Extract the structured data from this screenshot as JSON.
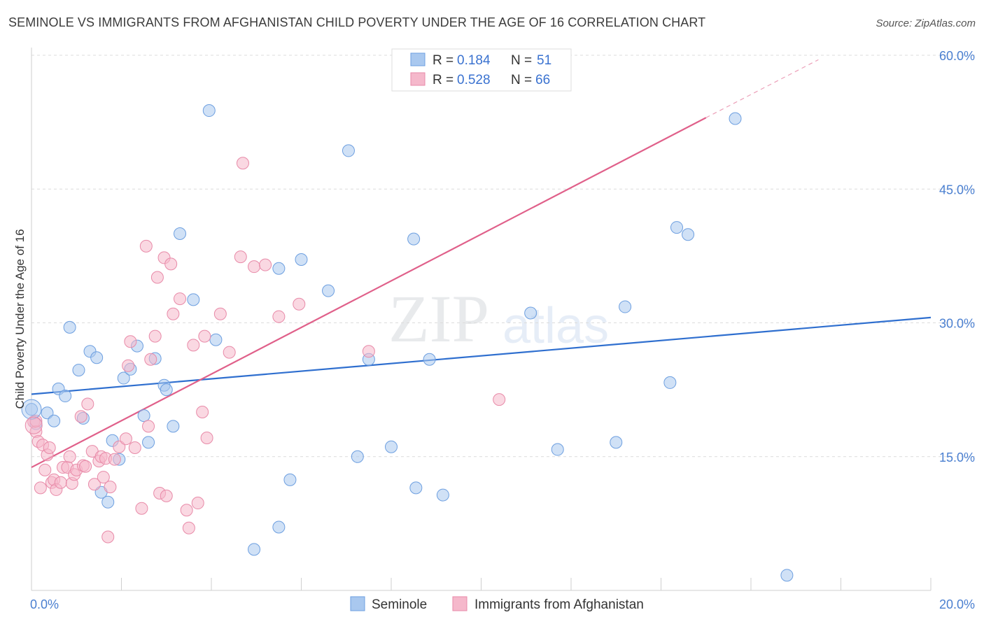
{
  "title": "SEMINOLE VS IMMIGRANTS FROM AFGHANISTAN CHILD POVERTY UNDER THE AGE OF 16 CORRELATION CHART",
  "source": "Source: ZipAtlas.com",
  "watermark": {
    "zip": "ZIP",
    "atlas": "atlas"
  },
  "legend": {
    "r_label": "R =",
    "n_label": "N =",
    "rows": [
      {
        "r": "0.184",
        "n": "51"
      },
      {
        "r": "0.528",
        "n": "66"
      }
    ]
  },
  "chart_data": {
    "type": "scatter",
    "title": "SEMINOLE VS IMMIGRANTS FROM AFGHANISTAN CHILD POVERTY UNDER THE AGE OF 16 CORRELATION CHART",
    "xlabel": "",
    "ylabel": "Child Poverty Under the Age of 16",
    "xlim": [
      0,
      20
    ],
    "ylim": [
      0,
      60
    ],
    "x_tick_labels": [
      "0.0%",
      "20.0%"
    ],
    "y_ticks": [
      {
        "value": 15,
        "label": "15.0%"
      },
      {
        "value": 30,
        "label": "30.0%"
      },
      {
        "value": 45,
        "label": "45.0%"
      },
      {
        "value": 60,
        "label": "60.0%"
      }
    ],
    "series": [
      {
        "name": "Seminole",
        "color": "#a9c8ef",
        "stroke": "#6d9fe0",
        "trend_color": "#2f6fcf",
        "trend": {
          "x0": 0,
          "y0": 22.0,
          "x1": 20,
          "y1": 30.6
        },
        "points": [
          [
            0.0,
            20.3
          ],
          [
            0.1,
            18.7
          ],
          [
            0.35,
            19.9
          ],
          [
            0.5,
            19.0
          ],
          [
            0.6,
            22.6
          ],
          [
            0.75,
            21.8
          ],
          [
            0.85,
            29.5
          ],
          [
            1.05,
            24.7
          ],
          [
            1.3,
            26.8
          ],
          [
            1.45,
            26.1
          ],
          [
            1.15,
            19.3
          ],
          [
            1.55,
            11.0
          ],
          [
            1.7,
            9.9
          ],
          [
            1.8,
            16.8
          ],
          [
            1.95,
            14.7
          ],
          [
            2.05,
            23.8
          ],
          [
            2.2,
            24.8
          ],
          [
            2.35,
            27.4
          ],
          [
            2.5,
            19.6
          ],
          [
            2.6,
            16.6
          ],
          [
            2.75,
            26.0
          ],
          [
            2.95,
            23.0
          ],
          [
            3.0,
            22.5
          ],
          [
            3.15,
            18.4
          ],
          [
            3.3,
            40.0
          ],
          [
            3.6,
            32.6
          ],
          [
            3.95,
            53.8
          ],
          [
            4.1,
            28.1
          ],
          [
            4.95,
            4.6
          ],
          [
            5.5,
            7.1
          ],
          [
            5.5,
            36.1
          ],
          [
            5.75,
            12.4
          ],
          [
            6.0,
            37.1
          ],
          [
            6.6,
            33.6
          ],
          [
            7.05,
            49.3
          ],
          [
            7.25,
            15.0
          ],
          [
            7.5,
            25.9
          ],
          [
            8.0,
            16.1
          ],
          [
            8.5,
            39.4
          ],
          [
            8.55,
            11.5
          ],
          [
            8.85,
            25.9
          ],
          [
            9.15,
            10.7
          ],
          [
            11.1,
            31.1
          ],
          [
            11.7,
            15.8
          ],
          [
            13.0,
            16.6
          ],
          [
            13.2,
            31.8
          ],
          [
            14.2,
            23.3
          ],
          [
            14.35,
            40.7
          ],
          [
            14.6,
            39.9
          ],
          [
            15.65,
            52.9
          ],
          [
            16.8,
            1.7
          ]
        ]
      },
      {
        "name": "Immigrants from Afghanistan",
        "color": "#f5b8cb",
        "stroke": "#e88aa8",
        "trend_color": "#e0608a",
        "trend": {
          "x0": 0,
          "y0": 13.8,
          "x1": 15,
          "y1": 53.0
        },
        "trend_extension": {
          "x0": 15,
          "y0": 53.0,
          "x1": 17.5,
          "y1": 59.5
        },
        "points": [
          [
            0.05,
            18.9
          ],
          [
            0.1,
            17.8
          ],
          [
            0.15,
            16.7
          ],
          [
            0.2,
            11.5
          ],
          [
            0.25,
            16.3
          ],
          [
            0.3,
            13.5
          ],
          [
            0.35,
            15.2
          ],
          [
            0.4,
            16.0
          ],
          [
            0.45,
            12.1
          ],
          [
            0.5,
            12.4
          ],
          [
            0.55,
            11.3
          ],
          [
            0.65,
            12.1
          ],
          [
            0.7,
            13.8
          ],
          [
            0.8,
            13.8
          ],
          [
            0.85,
            15.0
          ],
          [
            0.9,
            12.0
          ],
          [
            0.95,
            13.0
          ],
          [
            1.0,
            13.5
          ],
          [
            1.1,
            19.5
          ],
          [
            1.15,
            14.0
          ],
          [
            1.2,
            13.9
          ],
          [
            1.25,
            20.9
          ],
          [
            1.35,
            15.6
          ],
          [
            1.4,
            11.9
          ],
          [
            1.5,
            14.5
          ],
          [
            1.55,
            15.0
          ],
          [
            1.6,
            12.7
          ],
          [
            1.65,
            14.8
          ],
          [
            1.7,
            6.0
          ],
          [
            1.75,
            11.6
          ],
          [
            1.85,
            14.7
          ],
          [
            1.95,
            16.1
          ],
          [
            2.1,
            17.0
          ],
          [
            2.15,
            25.2
          ],
          [
            2.2,
            27.9
          ],
          [
            2.3,
            16.0
          ],
          [
            2.45,
            9.2
          ],
          [
            2.55,
            38.6
          ],
          [
            2.6,
            18.4
          ],
          [
            2.65,
            25.9
          ],
          [
            2.75,
            28.5
          ],
          [
            2.8,
            35.1
          ],
          [
            2.85,
            10.9
          ],
          [
            2.95,
            37.3
          ],
          [
            3.0,
            10.6
          ],
          [
            3.1,
            36.6
          ],
          [
            3.15,
            31.0
          ],
          [
            3.3,
            32.7
          ],
          [
            3.45,
            9.0
          ],
          [
            3.5,
            7.0
          ],
          [
            3.6,
            27.5
          ],
          [
            3.7,
            9.8
          ],
          [
            3.8,
            20.0
          ],
          [
            3.85,
            28.5
          ],
          [
            3.9,
            17.1
          ],
          [
            4.2,
            31.0
          ],
          [
            4.4,
            26.7
          ],
          [
            4.65,
            37.4
          ],
          [
            4.7,
            47.9
          ],
          [
            4.95,
            36.3
          ],
          [
            5.2,
            36.5
          ],
          [
            5.5,
            30.7
          ],
          [
            5.95,
            32.1
          ],
          [
            7.5,
            26.8
          ],
          [
            10.4,
            21.4
          ],
          [
            0.1,
            19.0
          ]
        ]
      }
    ]
  }
}
